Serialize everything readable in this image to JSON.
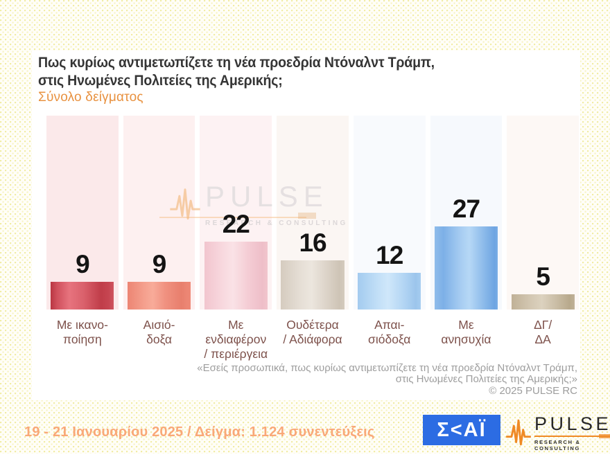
{
  "slide": {
    "title_line1": "Πως κυρίως αντιμετωπίζετε τη νέα προεδρία Ντόναλντ Τράμπ,",
    "title_line2": "στις Ηνωμένες Πολιτείες της Αμερικής;",
    "subtitle": "Σύνολο δείγματος"
  },
  "chart_data": {
    "type": "bar",
    "title": "Πως κυρίως αντιμετωπίζετε τη νέα προεδρία Ντόναλντ Τράμπ, στις Ηνωμένες Πολιτείες της Αμερικής;",
    "subtitle": "Σύνολο δείγματος",
    "unit": "percent",
    "ylim": [
      0,
      63
    ],
    "grid": false,
    "legend": "none",
    "data_labels_position": "above-bar",
    "categories": [
      "Με ικανο-ποίηση",
      "Αισιό-δοξα",
      "Με ενδιαφέρον / περιέργεια",
      "Ουδέτερα / Αδιάφορα",
      "Απαι-σιόδοξα",
      "Με ανησυχία",
      "ΔΓ/ΔΑ"
    ],
    "categories_wrapped": [
      [
        "Με ικανο-",
        "ποίηση"
      ],
      [
        "Αισιό-",
        "δοξα"
      ],
      [
        "Με ενδιαφέρον",
        "/ περιέργεια"
      ],
      [
        "Ουδέτερα",
        "/ Αδιάφορα"
      ],
      [
        "Απαι-",
        "σιόδοξα"
      ],
      [
        "Με",
        "ανησυχία"
      ],
      [
        "ΔΓ/",
        "ΔΑ"
      ]
    ],
    "values": [
      9,
      9,
      22,
      16,
      12,
      27,
      5
    ],
    "bar_colors": [
      "#c7414d",
      "#ef8d7b",
      "#f3c9d1",
      "#d8cfc4",
      "#aed3f1",
      "#85b5e9",
      "#c5b69e"
    ],
    "column_bg_colors": [
      "#fbe9ea",
      "#fdf0f0",
      "#fdf2f3",
      "#fbf6f3",
      "#f8fafd",
      "#f6f9fd",
      "#fdf8f5"
    ]
  },
  "watermark": {
    "brand": "PULSE",
    "tagline": "RESEARCH & CONSULTING"
  },
  "footer": {
    "quote_line1": "«Εσείς προσωπικά, πως κυρίως αντιμετωπίζετε τη νέα προεδρία Ντόναλντ Τράμπ,",
    "quote_line2": "στις Ηνωμένες Πολιτείες της Αμερικής;»",
    "copyright": "©  2025  PULSE RC"
  },
  "bottom_bar": {
    "fieldwork_text": "19 - 21 Ιανουαρίου 2025  /  Δείγμα:  1.124 συνεντεύξεις",
    "skai_logo_text": "Σ<ΑΪ",
    "pulse_brand": "PULSE",
    "pulse_tagline": "RESEARCH & CONSULTING"
  },
  "accent_colors": {
    "skai_blue": "#2c6ce3",
    "pulse_orange": "#ef8a25",
    "subtitle_orange": "#e8913f",
    "fieldwork_orange": "#f9a878",
    "category_label_brown": "#7d514b"
  }
}
